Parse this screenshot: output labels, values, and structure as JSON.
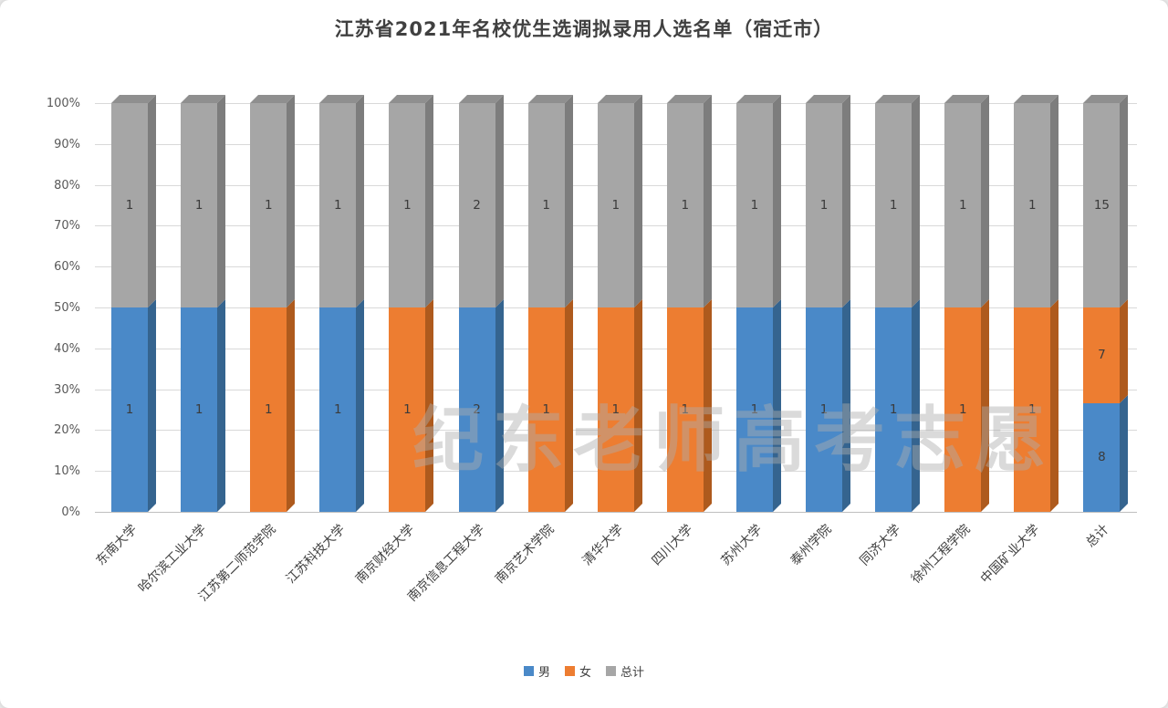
{
  "title": "江苏省2021年名校优生选调拟录用人选名单（宿迁市）",
  "watermark": "纪东老师高考志愿",
  "y_axis": {
    "ticks": [
      "0%",
      "10%",
      "20%",
      "30%",
      "40%",
      "50%",
      "60%",
      "70%",
      "80%",
      "90%",
      "100%"
    ]
  },
  "legend": {
    "position": "bottom"
  },
  "chart_data": {
    "type": "bar",
    "subtype": "100-percent-stacked-3d-column",
    "title": "江苏省2021年名校优生选调拟录用人选名单（宿迁市）",
    "xlabel": "",
    "ylabel": "",
    "ylim": [
      "0%",
      "100%"
    ],
    "grid": true,
    "legend_position": "bottom",
    "categories": [
      "东南大学",
      "哈尔滨工业大学",
      "江苏第二师范学院",
      "江苏科技大学",
      "南京财经大学",
      "南京信息工程大学",
      "南京艺术学院",
      "清华大学",
      "四川大学",
      "苏州大学",
      "泰州学院",
      "同济大学",
      "徐州工程学院",
      "中国矿业大学",
      "总计"
    ],
    "series": [
      {
        "name": "男",
        "key": "male",
        "color": "#4a89c8",
        "side_color": "#35648f",
        "top_color": "#3d74a8",
        "values": [
          1,
          1,
          0,
          1,
          0,
          2,
          0,
          0,
          0,
          1,
          1,
          1,
          0,
          0,
          8
        ]
      },
      {
        "name": "女",
        "key": "female",
        "color": "#ed7d31",
        "side_color": "#ae5a1d",
        "top_color": "#c96524",
        "values": [
          0,
          0,
          1,
          0,
          1,
          0,
          1,
          1,
          1,
          0,
          0,
          0,
          1,
          1,
          7
        ]
      },
      {
        "name": "总计",
        "key": "total",
        "color": "#a6a6a6",
        "side_color": "#7d7d7d",
        "top_color": "#8f8f8f",
        "values": [
          1,
          1,
          1,
          1,
          1,
          2,
          1,
          1,
          1,
          1,
          1,
          1,
          1,
          1,
          15
        ]
      }
    ]
  }
}
